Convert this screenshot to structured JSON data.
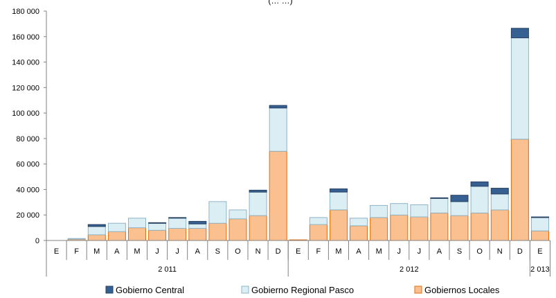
{
  "chart_data": {
    "type": "bar",
    "stacked": true,
    "title": "(…                                                        …)",
    "xlabel": "",
    "ylabel": "",
    "ylim": [
      0,
      180000
    ],
    "y_ticks": [
      "0",
      "20 000",
      "40 000",
      "60 000",
      "80 000",
      "100 000",
      "120 000",
      "140 000",
      "160 000",
      "180 000"
    ],
    "grid": false,
    "legend_position": "bottom",
    "categories": [
      "E",
      "F",
      "M",
      "A",
      "M",
      "J",
      "J",
      "A",
      "S",
      "O",
      "N",
      "D",
      "E",
      "F",
      "M",
      "A",
      "M",
      "J",
      "J",
      "A",
      "S",
      "O",
      "N",
      "D",
      "E"
    ],
    "year_groups": [
      {
        "label": "2 011",
        "count": 12
      },
      {
        "label": "2 012",
        "count": 12
      },
      {
        "label": "2 013",
        "count": 1
      }
    ],
    "series": [
      {
        "name": "Gobiernos Locales",
        "color": "#FAC090",
        "stroke": "#E46C0A",
        "values": [
          0,
          1000,
          4500,
          7000,
          10000,
          8000,
          9500,
          9500,
          13500,
          17000,
          19500,
          70000,
          500,
          12500,
          24000,
          11500,
          18000,
          20000,
          18500,
          21500,
          19500,
          21500,
          24000,
          79500,
          7500
        ]
      },
      {
        "name": "Gobierno Regional Pasco",
        "color": "#DAEEF3",
        "stroke": "#8EB4C8",
        "values": [
          0,
          500,
          6500,
          6500,
          7500,
          5500,
          8000,
          3500,
          17000,
          7000,
          18500,
          34000,
          0,
          5500,
          14000,
          6000,
          9500,
          9000,
          9500,
          11500,
          11000,
          21000,
          12500,
          79500,
          10500
        ]
      },
      {
        "name": "Gobierno Central",
        "color": "#366092",
        "stroke": "#254061",
        "values": [
          0,
          0,
          1500,
          0,
          0,
          500,
          500,
          2000,
          0,
          0,
          1500,
          2000,
          0,
          0,
          2500,
          0,
          0,
          0,
          0,
          500,
          5000,
          3500,
          4500,
          7500,
          500
        ]
      }
    ],
    "legend_order": [
      "Gobierno Central",
      "Gobierno Regional Pasco",
      "Gobiernos Locales"
    ]
  }
}
